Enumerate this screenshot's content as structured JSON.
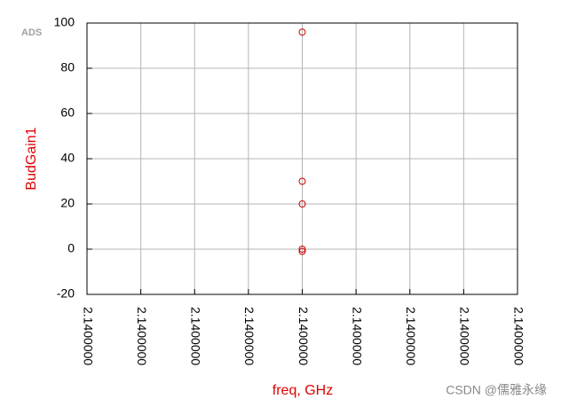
{
  "chart_data": {
    "type": "scatter",
    "brand": "ADS",
    "xlabel": "freq, GHz",
    "ylabel": "BudGain1",
    "x": [
      2.14,
      2.14,
      2.14,
      2.14,
      2.14
    ],
    "values": [
      96,
      30,
      20,
      0,
      -1
    ],
    "color": "#cc0000",
    "xlim": [
      2.1399996,
      2.1400004
    ],
    "xticks": [
      {
        "value": 2.1399996,
        "label": "2.1400000"
      },
      {
        "value": 2.1399997,
        "label": "2.1400000"
      },
      {
        "value": 2.1399998,
        "label": "2.1400000"
      },
      {
        "value": 2.1399999,
        "label": "2.1400000"
      },
      {
        "value": 2.14,
        "label": "2.1400000"
      },
      {
        "value": 2.1400001,
        "label": "2.1400000"
      },
      {
        "value": 2.1400002,
        "label": "2.1400000"
      },
      {
        "value": 2.1400003,
        "label": "2.1400000"
      },
      {
        "value": 2.1400004,
        "label": "2.1400000"
      }
    ],
    "ylim": [
      -20,
      100
    ],
    "yticks": [
      -20,
      0,
      20,
      40,
      60,
      80,
      100
    ],
    "grid": true,
    "watermark": "CSDN @儒雅永缘"
  }
}
